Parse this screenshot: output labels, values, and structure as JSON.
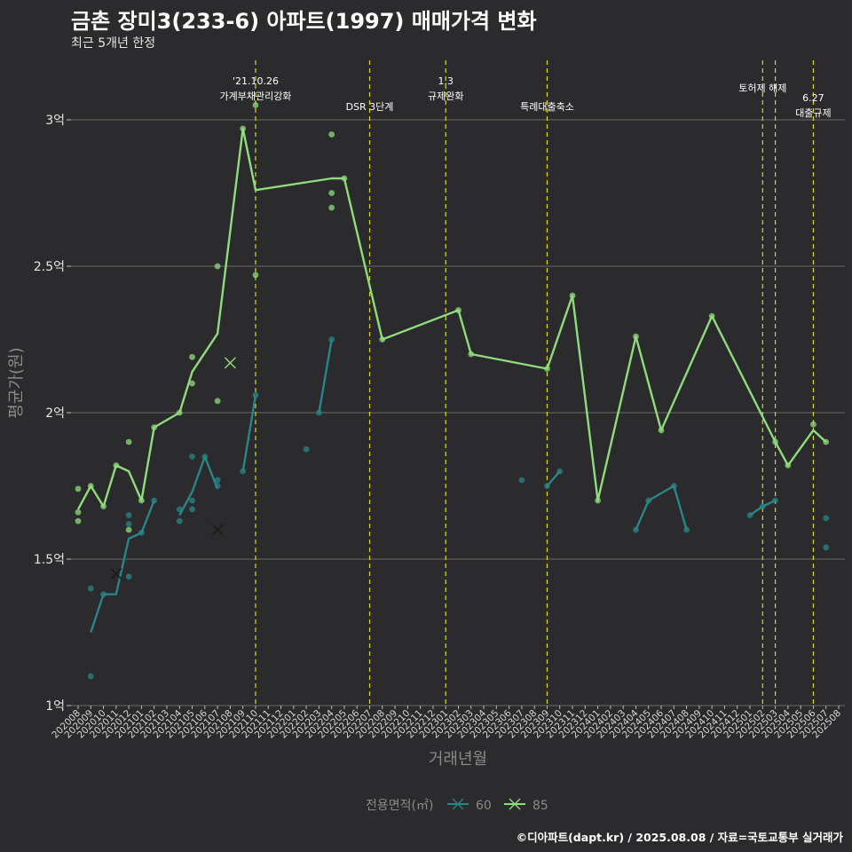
{
  "title": "금촌 장미3(233-6) 아파트(1997) 매매가격 변화",
  "subtitle": "최근 5개년 한정",
  "caption": "©디아파트(dapt.kr) / 2025.08.08 / 자료=국토교통부 실거래가",
  "chart_data": {
    "type": "line",
    "xlabel": "거래년월",
    "ylabel": "평균가(원)",
    "ylim": [
      1.0,
      3.2
    ],
    "yticks": [
      {
        "value": 1.0,
        "label": "1억"
      },
      {
        "value": 1.5,
        "label": "1.5억"
      },
      {
        "value": 2.0,
        "label": "2억"
      },
      {
        "value": 2.5,
        "label": "2.5억"
      },
      {
        "value": 3.0,
        "label": "3억"
      }
    ],
    "categories": [
      "202008",
      "202009",
      "202010",
      "202011",
      "202012",
      "202101",
      "202102",
      "202103",
      "202104",
      "202105",
      "202106",
      "202107",
      "202108",
      "202109",
      "202110",
      "202111",
      "202112",
      "202201",
      "202202",
      "202203",
      "202204",
      "202205",
      "202206",
      "202207",
      "202208",
      "202209",
      "202210",
      "202211",
      "202212",
      "202301",
      "202302",
      "202303",
      "202304",
      "202305",
      "202306",
      "202307",
      "202308",
      "202309",
      "202310",
      "202311",
      "202312",
      "202401",
      "202402",
      "202403",
      "202404",
      "202405",
      "202406",
      "202407",
      "202408",
      "202409",
      "202410",
      "202411",
      "202412",
      "202501",
      "202502",
      "202503",
      "202504",
      "202505",
      "202506",
      "202507",
      "202508"
    ],
    "legend_title": "전용면적(㎡)",
    "legend_position": "bottom",
    "grid": true,
    "series": [
      {
        "name": "60",
        "color": "#2a8588",
        "line": [
          {
            "x": "202009",
            "y": 1.25
          },
          {
            "x": "202010",
            "y": 1.38
          },
          {
            "x": "202011",
            "y": 1.38
          },
          {
            "x": "202012",
            "y": 1.57
          },
          {
            "x": "202101",
            "y": 1.59
          },
          {
            "x": "202102",
            "y": 1.7
          }
        ],
        "line_segments": [
          [
            {
              "x": "202104",
              "y": 1.65
            },
            {
              "x": "202105",
              "y": 1.73
            },
            {
              "x": "202106",
              "y": 1.85
            },
            {
              "x": "202107",
              "y": 1.74
            }
          ],
          [
            {
              "x": "202109",
              "y": 1.8
            },
            {
              "x": "202110",
              "y": 2.06
            }
          ],
          [
            {
              "x": "202203",
              "y": 2.0
            },
            {
              "x": "202204",
              "y": 2.25
            }
          ],
          [
            {
              "x": "202309",
              "y": 1.75
            },
            {
              "x": "202310",
              "y": 1.8
            }
          ],
          [
            {
              "x": "202404",
              "y": 1.6
            },
            {
              "x": "202405",
              "y": 1.7
            },
            {
              "x": "202407",
              "y": 1.75
            },
            {
              "x": "202408",
              "y": 1.6
            }
          ],
          [
            {
              "x": "202501",
              "y": 1.65
            },
            {
              "x": "202502",
              "y": 1.68
            },
            {
              "x": "202503",
              "y": 1.7
            }
          ]
        ],
        "points": [
          {
            "x": "202009",
            "y": 1.4
          },
          {
            "x": "202009",
            "y": 1.1
          },
          {
            "x": "202010",
            "y": 1.38
          },
          {
            "x": "202012",
            "y": 1.65
          },
          {
            "x": "202012",
            "y": 1.62
          },
          {
            "x": "202012",
            "y": 1.44
          },
          {
            "x": "202101",
            "y": 1.59
          },
          {
            "x": "202102",
            "y": 1.7
          },
          {
            "x": "202104",
            "y": 1.67
          },
          {
            "x": "202104",
            "y": 1.63
          },
          {
            "x": "202105",
            "y": 1.85
          },
          {
            "x": "202105",
            "y": 1.7
          },
          {
            "x": "202105",
            "y": 1.67
          },
          {
            "x": "202106",
            "y": 1.85
          },
          {
            "x": "202107",
            "y": 1.77
          },
          {
            "x": "202107",
            "y": 1.75
          },
          {
            "x": "202109",
            "y": 1.8
          },
          {
            "x": "202110",
            "y": 2.06
          },
          {
            "x": "202202",
            "y": 1.875
          },
          {
            "x": "202203",
            "y": 2.0
          },
          {
            "x": "202204",
            "y": 2.25
          },
          {
            "x": "202307",
            "y": 1.77
          },
          {
            "x": "202309",
            "y": 1.75
          },
          {
            "x": "202310",
            "y": 1.8
          },
          {
            "x": "202404",
            "y": 1.6
          },
          {
            "x": "202405",
            "y": 1.7
          },
          {
            "x": "202407",
            "y": 1.75
          },
          {
            "x": "202408",
            "y": 1.6
          },
          {
            "x": "202501",
            "y": 1.65
          },
          {
            "x": "202502",
            "y": 1.68
          },
          {
            "x": "202503",
            "y": 1.7
          },
          {
            "x": "202507",
            "y": 1.64
          },
          {
            "x": "202507",
            "y": 1.54
          }
        ],
        "cancelled": [
          {
            "x": "202011",
            "y": 1.45
          },
          {
            "x": "202107",
            "y": 1.6
          }
        ]
      },
      {
        "name": "85",
        "color": "#8fdc7c",
        "line": [
          {
            "x": "202008",
            "y": 1.67
          },
          {
            "x": "202009",
            "y": 1.75
          },
          {
            "x": "202010",
            "y": 1.68
          },
          {
            "x": "202011",
            "y": 1.82
          },
          {
            "x": "202012",
            "y": 1.8
          },
          {
            "x": "202101",
            "y": 1.7
          },
          {
            "x": "202102",
            "y": 1.95
          },
          {
            "x": "202104",
            "y": 2.0
          },
          {
            "x": "202105",
            "y": 2.14
          },
          {
            "x": "202107",
            "y": 2.27
          },
          {
            "x": "202109",
            "y": 2.97
          },
          {
            "x": "202110",
            "y": 2.76
          },
          {
            "x": "202204",
            "y": 2.8
          },
          {
            "x": "202205",
            "y": 2.8
          },
          {
            "x": "202208",
            "y": 2.25
          },
          {
            "x": "202302",
            "y": 2.35
          },
          {
            "x": "202303",
            "y": 2.2
          },
          {
            "x": "202309",
            "y": 2.15
          },
          {
            "x": "202311",
            "y": 2.4
          },
          {
            "x": "202401",
            "y": 1.7
          },
          {
            "x": "202404",
            "y": 2.26
          },
          {
            "x": "202406",
            "y": 1.94
          },
          {
            "x": "202410",
            "y": 2.33
          },
          {
            "x": "202503",
            "y": 1.9
          },
          {
            "x": "202504",
            "y": 1.82
          },
          {
            "x": "202506",
            "y": 1.94
          },
          {
            "x": "202507",
            "y": 1.9
          }
        ],
        "points": [
          {
            "x": "202008",
            "y": 1.74
          },
          {
            "x": "202008",
            "y": 1.66
          },
          {
            "x": "202008",
            "y": 1.63
          },
          {
            "x": "202009",
            "y": 1.75
          },
          {
            "x": "202010",
            "y": 1.68
          },
          {
            "x": "202011",
            "y": 1.82
          },
          {
            "x": "202012",
            "y": 1.9
          },
          {
            "x": "202012",
            "y": 1.6
          },
          {
            "x": "202101",
            "y": 1.7
          },
          {
            "x": "202102",
            "y": 1.95
          },
          {
            "x": "202104",
            "y": 2.0
          },
          {
            "x": "202105",
            "y": 2.19
          },
          {
            "x": "202105",
            "y": 2.1
          },
          {
            "x": "202107",
            "y": 2.5
          },
          {
            "x": "202107",
            "y": 2.04
          },
          {
            "x": "202109",
            "y": 2.97
          },
          {
            "x": "202110",
            "y": 3.05
          },
          {
            "x": "202110",
            "y": 2.47
          },
          {
            "x": "202204",
            "y": 2.95
          },
          {
            "x": "202204",
            "y": 2.75
          },
          {
            "x": "202204",
            "y": 2.7
          },
          {
            "x": "202205",
            "y": 2.8
          },
          {
            "x": "202208",
            "y": 2.25
          },
          {
            "x": "202302",
            "y": 2.35
          },
          {
            "x": "202303",
            "y": 2.2
          },
          {
            "x": "202309",
            "y": 2.15
          },
          {
            "x": "202311",
            "y": 2.4
          },
          {
            "x": "202401",
            "y": 1.7
          },
          {
            "x": "202404",
            "y": 2.26
          },
          {
            "x": "202406",
            "y": 1.94
          },
          {
            "x": "202410",
            "y": 2.33
          },
          {
            "x": "202503",
            "y": 1.9
          },
          {
            "x": "202504",
            "y": 1.82
          },
          {
            "x": "202506",
            "y": 1.96
          },
          {
            "x": "202507",
            "y": 1.9
          }
        ],
        "cancelled": [
          {
            "x": "202108",
            "y": 2.17
          }
        ]
      }
    ],
    "annotations": [
      {
        "x": "202110",
        "lines": [
          "'21.10.26",
          "가계부채관리강화"
        ],
        "label_pos": "top"
      },
      {
        "x": "202207",
        "lines": [
          "DSR 3단계"
        ],
        "label_pos": "low"
      },
      {
        "x": "202301",
        "lines": [
          "1.3",
          "규제완화"
        ],
        "label_pos": "top"
      },
      {
        "x": "202309",
        "lines": [
          "특례대출축소"
        ],
        "label_pos": "low"
      },
      {
        "x": "202502",
        "lines": [
          "토허제 해제"
        ],
        "label_pos": "mid"
      },
      {
        "x": "202503",
        "lines": [],
        "label_pos": "none"
      },
      {
        "x": "202506",
        "lines": [
          "6.27",
          "대출규제"
        ],
        "label_pos": "low2"
      }
    ]
  }
}
